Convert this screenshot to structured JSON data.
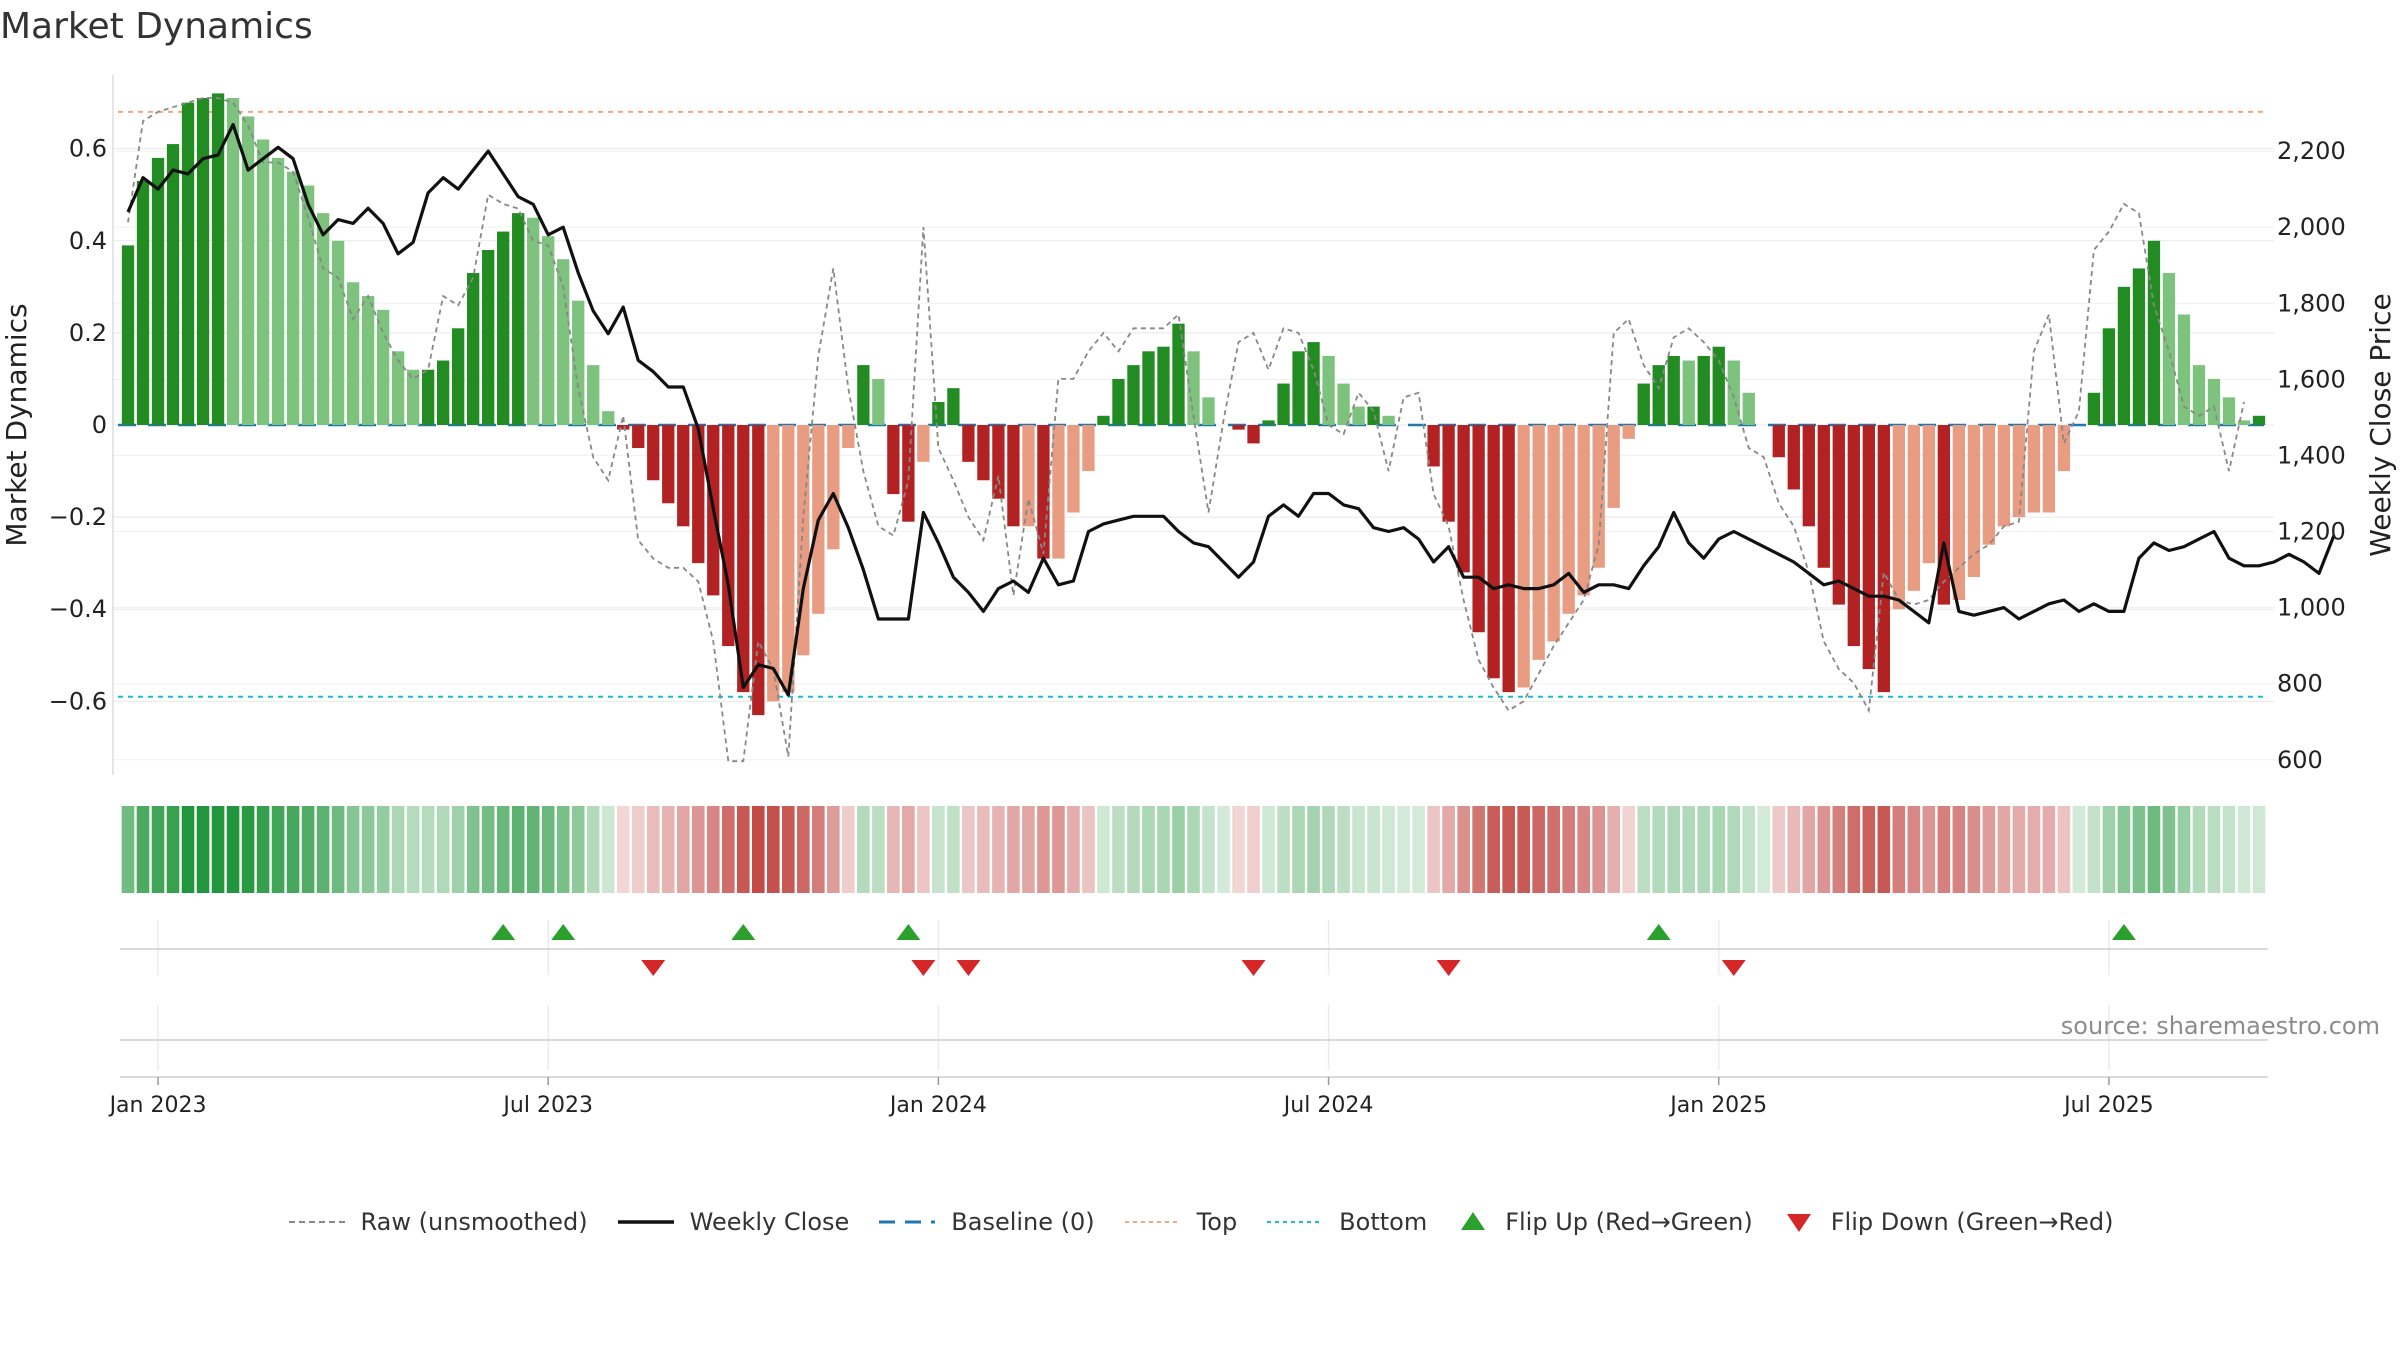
{
  "title": "Market Dynamics",
  "source": "source: sharemaestro.com",
  "colors": {
    "green_dark": "#228b22",
    "green_light": "#7dc27d",
    "red_dark": "#b22222",
    "red_light": "#e89c82",
    "close_line": "#111111",
    "raw_line": "#888888",
    "baseline": "#1f77b4",
    "top_line": "#f4a582",
    "bottom_line": "#17becf",
    "flip_up": "#2ca02c",
    "flip_down": "#d62728"
  },
  "legend": [
    {
      "key": "raw",
      "label": "Raw (unsmoothed)"
    },
    {
      "key": "close",
      "label": "Weekly Close"
    },
    {
      "key": "baseline",
      "label": "Baseline (0)"
    },
    {
      "key": "top",
      "label": "Top"
    },
    {
      "key": "bottom",
      "label": "Bottom"
    },
    {
      "key": "flip_up",
      "label": "Flip Up (Red→Green)"
    },
    {
      "key": "flip_down",
      "label": "Flip Down (Green→Red)"
    }
  ],
  "chart_data": {
    "type": "bar",
    "ylabel_left": "Market Dynamics",
    "ylabel_right": "Weekly Close Price",
    "ylim_left": [
      -0.76,
      0.76
    ],
    "ylim_right": [
      560,
      2400
    ],
    "yticks_left": [
      0.6,
      0.4,
      0.2,
      0,
      -0.2,
      -0.4,
      -0.6
    ],
    "yticks_left_labels": [
      "0.6",
      "0.4",
      "0.2",
      "0",
      "−0.2",
      "−0.4",
      "−0.6"
    ],
    "yticks_right": [
      2200,
      2000,
      1800,
      1600,
      1400,
      1200,
      1000,
      800,
      600
    ],
    "yticks_right_labels": [
      "2,200",
      "2,000",
      "1,800",
      "1,600",
      "1,400",
      "1,200",
      "1,000",
      "800",
      "600"
    ],
    "top_level": 0.68,
    "bottom_level": -0.59,
    "baseline": 0,
    "x_start_week": -2,
    "x_range_weeks": [
      -3,
      141
    ],
    "xticks_week": [
      0,
      26,
      52,
      78,
      104,
      130
    ],
    "xticks_labels": [
      "Jan 2023",
      "Jul 2023",
      "Jan 2024",
      "Jul 2024",
      "Jan 2025",
      "Jul 2025"
    ],
    "dynamics": [
      0.39,
      0.53,
      0.58,
      0.61,
      0.7,
      0.71,
      0.72,
      0.71,
      0.67,
      0.62,
      0.58,
      0.55,
      0.52,
      0.46,
      0.4,
      0.31,
      0.28,
      0.25,
      0.16,
      0.12,
      0.12,
      0.14,
      0.21,
      0.33,
      0.38,
      0.42,
      0.46,
      0.45,
      0.41,
      0.36,
      0.27,
      0.13,
      0.03,
      -0.01,
      -0.05,
      -0.12,
      -0.17,
      -0.22,
      -0.3,
      -0.37,
      -0.48,
      -0.58,
      -0.63,
      -0.6,
      -0.58,
      -0.5,
      -0.41,
      -0.27,
      -0.05,
      0.13,
      0.1,
      -0.15,
      -0.21,
      -0.08,
      0.05,
      0.08,
      -0.08,
      -0.12,
      -0.16,
      -0.22,
      -0.22,
      -0.29,
      -0.29,
      -0.19,
      -0.1,
      0.02,
      0.1,
      0.13,
      0.16,
      0.17,
      0.22,
      0.16,
      0.06,
      0.0,
      -0.01,
      -0.04,
      0.01,
      0.09,
      0.16,
      0.18,
      0.15,
      0.09,
      0.04,
      0.04,
      0.02,
      0.0,
      0.0,
      -0.09,
      -0.21,
      -0.32,
      -0.45,
      -0.55,
      -0.58,
      -0.57,
      -0.51,
      -0.47,
      -0.41,
      -0.37,
      -0.31,
      -0.18,
      -0.03,
      0.09,
      0.13,
      0.15,
      0.14,
      0.15,
      0.17,
      0.14,
      0.07,
      0.0,
      -0.07,
      -0.14,
      -0.22,
      -0.31,
      -0.39,
      -0.48,
      -0.53,
      -0.58,
      -0.4,
      -0.36,
      -0.3,
      -0.39,
      -0.38,
      -0.33,
      -0.26,
      -0.22,
      -0.2,
      -0.19,
      -0.19,
      -0.1,
      0.0,
      0.07,
      0.21,
      0.3,
      0.34,
      0.4,
      0.33,
      0.24,
      0.13,
      0.1,
      0.06,
      0.01,
      0.02
    ],
    "close_price": [
      2040,
      2130,
      2100,
      2150,
      2140,
      2180,
      2190,
      2270,
      2150,
      2180,
      2210,
      2180,
      2060,
      1980,
      2020,
      2010,
      2050,
      2010,
      1930,
      1960,
      2090,
      2130,
      2100,
      2150,
      2200,
      2140,
      2080,
      2060,
      1980,
      2000,
      1880,
      1780,
      1720,
      1790,
      1650,
      1620,
      1580,
      1580,
      1470,
      1260,
      1060,
      790,
      850,
      840,
      770,
      1050,
      1230,
      1300,
      1210,
      1100,
      970,
      970,
      970,
      1250,
      1170,
      1080,
      1040,
      990,
      1050,
      1070,
      1040,
      1130,
      1060,
      1070,
      1200,
      1220,
      1230,
      1240,
      1240,
      1240,
      1200,
      1170,
      1160,
      1120,
      1080,
      1120,
      1240,
      1270,
      1240,
      1300,
      1300,
      1270,
      1260,
      1210,
      1200,
      1210,
      1180,
      1120,
      1160,
      1080,
      1080,
      1050,
      1060,
      1050,
      1050,
      1060,
      1090,
      1040,
      1060,
      1060,
      1050,
      1110,
      1160,
      1250,
      1170,
      1130,
      1180,
      1200,
      1180,
      1160,
      1140,
      1120,
      1090,
      1060,
      1070,
      1050,
      1030,
      1030,
      1020,
      990,
      960,
      1170,
      990,
      980,
      990,
      1000,
      970,
      990,
      1010,
      1020,
      990,
      1010,
      990,
      990,
      1130,
      1170,
      1150,
      1160,
      1180,
      1200,
      1130,
      1110,
      1110,
      1120,
      1140,
      1120,
      1090,
      1190
    ],
    "raw": [
      0.44,
      0.66,
      0.68,
      0.69,
      0.7,
      0.71,
      0.71,
      0.7,
      0.65,
      0.57,
      0.57,
      0.55,
      0.45,
      0.34,
      0.32,
      0.23,
      0.28,
      0.2,
      0.14,
      0.1,
      0.12,
      0.28,
      0.26,
      0.32,
      0.5,
      0.48,
      0.47,
      0.4,
      0.39,
      0.3,
      0.08,
      -0.07,
      -0.12,
      0.02,
      -0.25,
      -0.29,
      -0.31,
      -0.31,
      -0.34,
      -0.47,
      -0.73,
      -0.73,
      -0.47,
      -0.53,
      -0.72,
      -0.2,
      0.15,
      0.34,
      0.08,
      -0.1,
      -0.22,
      -0.24,
      -0.12,
      0.43,
      -0.05,
      -0.12,
      -0.2,
      -0.25,
      -0.11,
      -0.37,
      -0.16,
      -0.28,
      0.1,
      0.1,
      0.16,
      0.2,
      0.16,
      0.21,
      0.21,
      0.21,
      0.24,
      0.02,
      -0.19,
      0.01,
      0.18,
      0.2,
      0.12,
      0.21,
      0.2,
      0.12,
      0.0,
      -0.02,
      0.07,
      0.03,
      -0.1,
      0.06,
      0.07,
      -0.15,
      -0.22,
      -0.38,
      -0.51,
      -0.57,
      -0.62,
      -0.6,
      -0.54,
      -0.48,
      -0.43,
      -0.38,
      -0.26,
      0.2,
      0.23,
      0.13,
      0.08,
      0.19,
      0.21,
      0.18,
      0.14,
      0.06,
      -0.05,
      -0.07,
      -0.17,
      -0.22,
      -0.32,
      -0.47,
      -0.53,
      -0.56,
      -0.62,
      -0.32,
      -0.38,
      -0.39,
      -0.38,
      -0.34,
      -0.31,
      -0.28,
      -0.26,
      -0.22,
      -0.21,
      0.16,
      0.24,
      -0.04,
      0.03,
      0.38,
      0.42,
      0.48,
      0.46,
      0.26,
      0.16,
      0.04,
      0.02,
      0.04,
      -0.1,
      0.05
    ],
    "flip_up_weeks": [
      23,
      27,
      39,
      50,
      100,
      131
    ],
    "flip_down_weeks": [
      33,
      51,
      54,
      73,
      86,
      105
    ]
  }
}
